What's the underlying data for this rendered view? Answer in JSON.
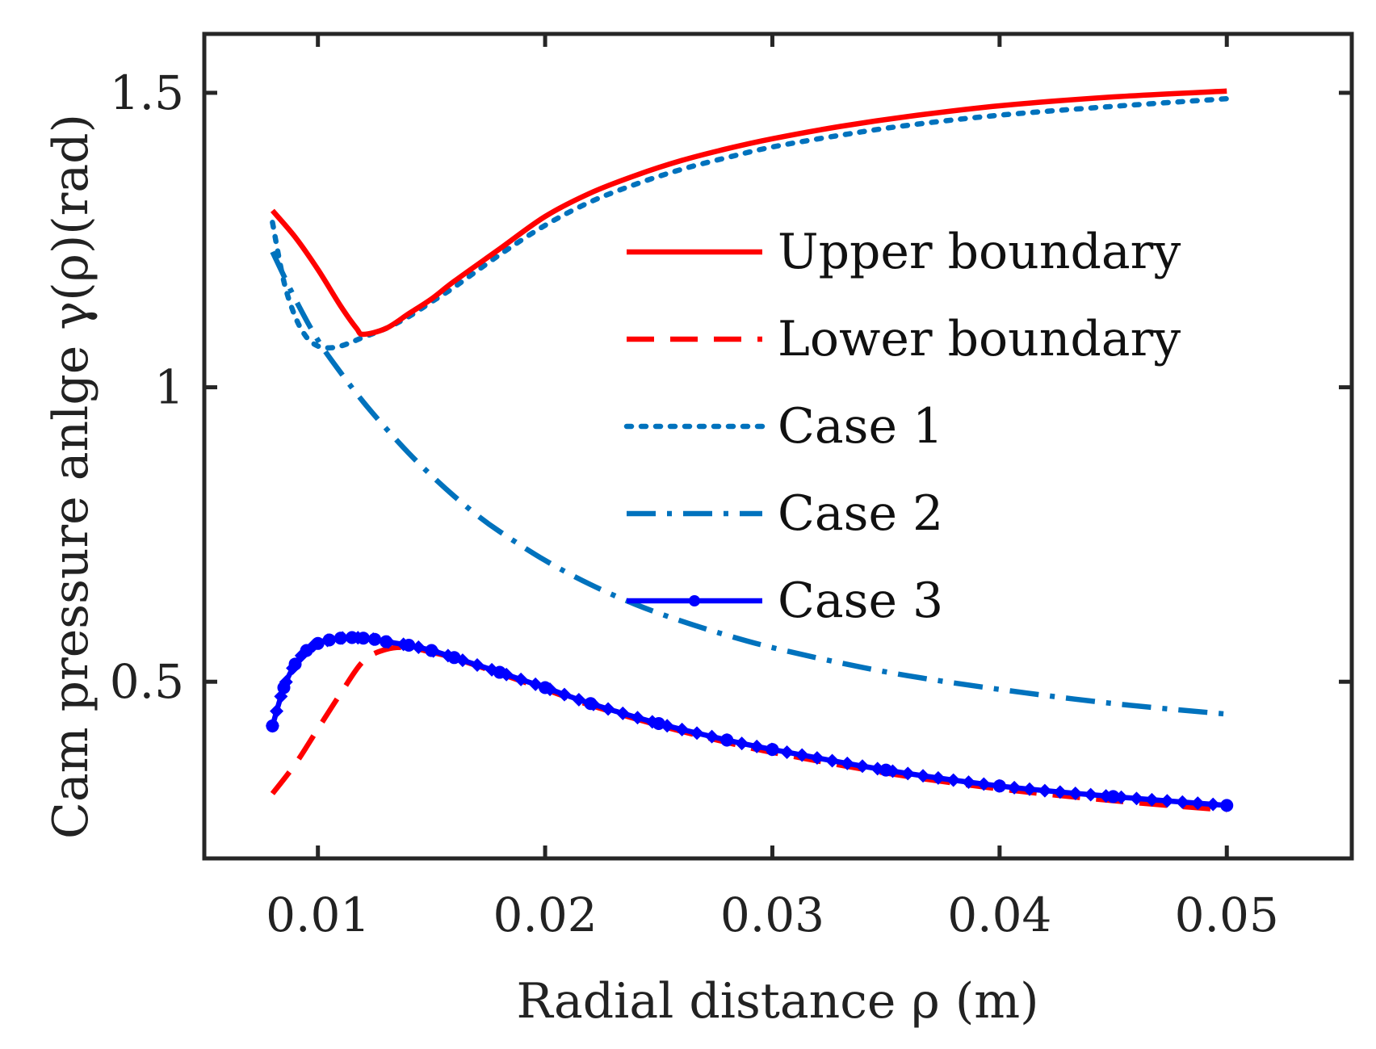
{
  "chart_data": {
    "type": "line",
    "title": "",
    "xlabel": "Radial distance ρ (m)",
    "ylabel": "Cam pressure anlge γ(ρ)(rad)",
    "xlim": [
      0.005,
      0.0555
    ],
    "ylim": [
      0.2,
      1.6
    ],
    "xticks": [
      0.01,
      0.02,
      0.03,
      0.04,
      0.05
    ],
    "xtick_labels": [
      "0.01",
      "0.02",
      "0.03",
      "0.04",
      "0.05"
    ],
    "yticks": [
      0.5,
      1,
      1.5
    ],
    "ytick_labels": [
      "0.5",
      "1",
      "1.5"
    ],
    "grid": false,
    "legend_position": "center-right",
    "series": [
      {
        "name": "Upper boundary",
        "color": "#ff0000",
        "style": "solid",
        "x": [
          0.008,
          0.009,
          0.01,
          0.011,
          0.0117,
          0.012,
          0.013,
          0.014,
          0.015,
          0.016,
          0.018,
          0.02,
          0.022,
          0.024,
          0.026,
          0.028,
          0.03,
          0.033,
          0.036,
          0.04,
          0.045,
          0.05
        ],
        "y": [
          1.3,
          1.255,
          1.2,
          1.138,
          1.1,
          1.09,
          1.1,
          1.125,
          1.15,
          1.18,
          1.235,
          1.29,
          1.33,
          1.36,
          1.385,
          1.405,
          1.422,
          1.443,
          1.46,
          1.478,
          1.493,
          1.503
        ]
      },
      {
        "name": "Lower boundary",
        "color": "#ff0000",
        "style": "dashed",
        "x": [
          0.008,
          0.009,
          0.01,
          0.011,
          0.012,
          0.013,
          0.014,
          0.015,
          0.016,
          0.018,
          0.02,
          0.022,
          0.025,
          0.028,
          0.03,
          0.035,
          0.04,
          0.045,
          0.05
        ],
        "y": [
          0.31,
          0.36,
          0.42,
          0.48,
          0.535,
          0.555,
          0.558,
          0.55,
          0.54,
          0.514,
          0.487,
          0.46,
          0.426,
          0.397,
          0.38,
          0.345,
          0.318,
          0.298,
          0.282
        ]
      },
      {
        "name": "Case 1",
        "color": "#0072bd",
        "style": "dotted",
        "x": [
          0.008,
          0.0085,
          0.009,
          0.0095,
          0.01,
          0.0105,
          0.011,
          0.0115,
          0.012,
          0.013,
          0.014,
          0.015,
          0.016,
          0.018,
          0.02,
          0.022,
          0.024,
          0.026,
          0.028,
          0.03,
          0.033,
          0.036,
          0.04,
          0.045,
          0.05
        ],
        "y": [
          1.28,
          1.18,
          1.12,
          1.085,
          1.07,
          1.067,
          1.07,
          1.077,
          1.085,
          1.1,
          1.12,
          1.145,
          1.17,
          1.225,
          1.275,
          1.315,
          1.345,
          1.37,
          1.39,
          1.408,
          1.428,
          1.445,
          1.462,
          1.477,
          1.49
        ]
      },
      {
        "name": "Case 2",
        "color": "#0072bd",
        "style": "dashdot",
        "x": [
          0.008,
          0.009,
          0.01,
          0.011,
          0.012,
          0.013,
          0.014,
          0.015,
          0.016,
          0.017,
          0.018,
          0.02,
          0.022,
          0.024,
          0.026,
          0.028,
          0.03,
          0.033,
          0.036,
          0.04,
          0.045,
          0.05
        ],
        "y": [
          1.23,
          1.15,
          1.08,
          1.025,
          0.975,
          0.93,
          0.888,
          0.85,
          0.815,
          0.783,
          0.755,
          0.706,
          0.665,
          0.631,
          0.603,
          0.579,
          0.558,
          0.532,
          0.51,
          0.487,
          0.463,
          0.445
        ]
      },
      {
        "name": "Case 3",
        "color": "#0000ff",
        "style": "solid-marker",
        "x": [
          0.008,
          0.0085,
          0.009,
          0.0095,
          0.01,
          0.0105,
          0.011,
          0.0115,
          0.012,
          0.0125,
          0.013,
          0.014,
          0.015,
          0.016,
          0.018,
          0.02,
          0.022,
          0.025,
          0.028,
          0.03,
          0.035,
          0.04,
          0.045,
          0.05
        ],
        "y": [
          0.425,
          0.49,
          0.53,
          0.553,
          0.565,
          0.571,
          0.574,
          0.575,
          0.574,
          0.572,
          0.568,
          0.562,
          0.553,
          0.541,
          0.516,
          0.49,
          0.463,
          0.429,
          0.401,
          0.385,
          0.35,
          0.323,
          0.305,
          0.29
        ]
      }
    ]
  }
}
